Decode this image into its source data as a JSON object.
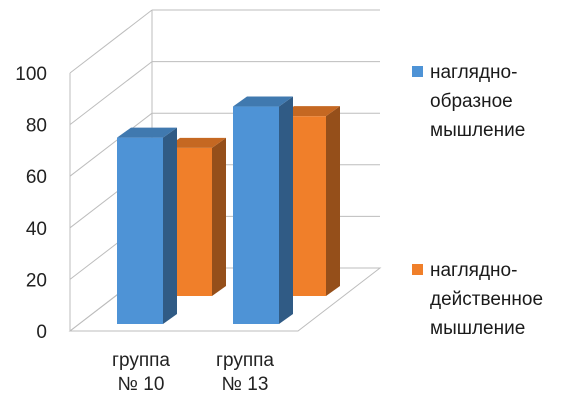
{
  "chart_data": {
    "type": "bar",
    "categories": [
      "группа\n№ 10",
      "группа\n№ 13"
    ],
    "series": [
      {
        "name": "наглядно-образное мышление",
        "values": [
          84,
          98
        ],
        "color": "#4e93d6"
      },
      {
        "name": "наглядно-действенное мышление",
        "values": [
          70,
          85
        ],
        "color": "#f07f2a"
      }
    ],
    "yticks": [
      "0",
      "20",
      "40",
      "60",
      "80",
      "100"
    ],
    "ylim": [
      0,
      100
    ],
    "grid": true,
    "legend": "right",
    "three_d": true
  }
}
